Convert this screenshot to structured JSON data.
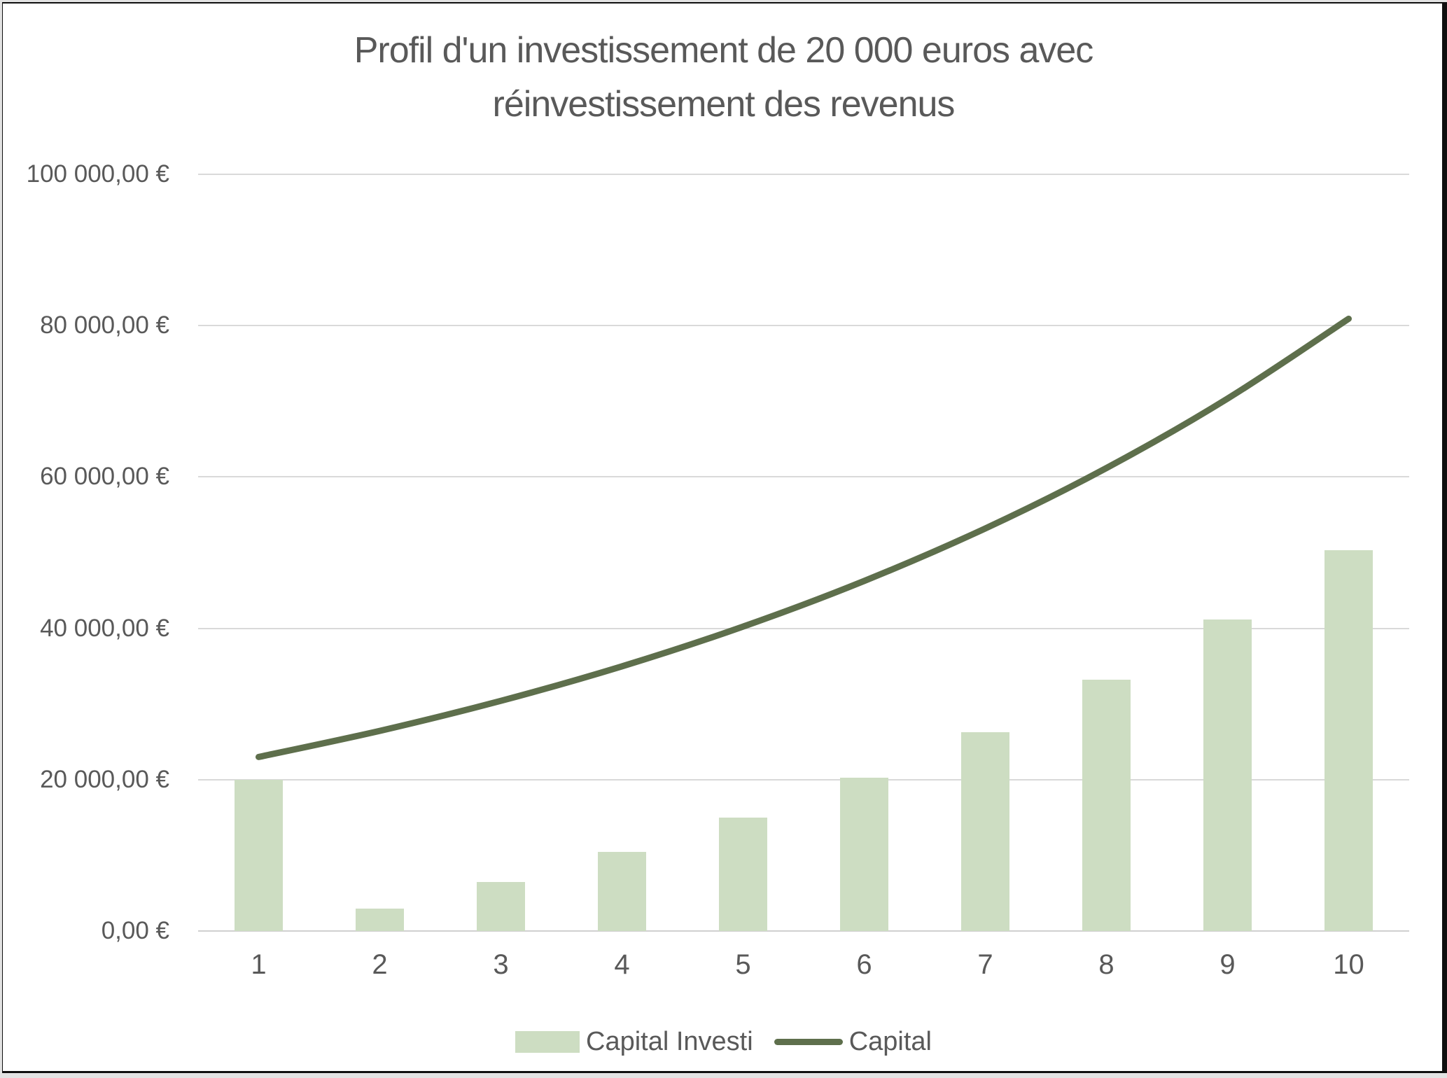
{
  "chart": {
    "title_line1": "Profil d'un investissement de 20 000 euros avec",
    "title_line2": "réinvestissement des revenus",
    "y_axis_labels": [
      "100 000,00 €",
      "80 000,00 €",
      "60 000,00 €",
      "40 000,00 €",
      "20 000,00 €",
      "0,00 €"
    ],
    "x_axis_labels": [
      "1",
      "2",
      "3",
      "4",
      "5",
      "6",
      "7",
      "8",
      "9",
      "10"
    ],
    "legend": [
      {
        "label": "Capital Investi",
        "marker": "bar-swatch"
      },
      {
        "label": "Capital",
        "marker": "line-swatch"
      }
    ],
    "colors": {
      "bar_fill": "#cdddc2",
      "line_stroke": "#5e6f4c",
      "gridline": "#d9d9d9",
      "text": "#595959",
      "frame_border": "#0f0f0f",
      "outer_background": "#e3e3e3",
      "chart_background": "#ffffff"
    }
  },
  "chart_data": {
    "type": "bar",
    "title": "Profil d'un investissement de 20 000 euros avec réinvestissement des revenus",
    "categories": [
      1,
      2,
      3,
      4,
      5,
      6,
      7,
      8,
      9,
      10
    ],
    "series": [
      {
        "name": "Capital Investi",
        "type": "bar",
        "values": [
          20000,
          3000,
          6450,
          10418,
          14980,
          20227,
          26261,
          33200,
          41180,
          50358
        ]
      },
      {
        "name": "Capital",
        "type": "line",
        "smooth": true,
        "values": [
          23000,
          26450,
          30418,
          34980,
          40227,
          46261,
          53200,
          61180,
          70358,
          80911
        ]
      }
    ],
    "xlabel": "",
    "ylabel": "",
    "ylim": [
      0,
      100000
    ],
    "y_tick_step": 20000,
    "y_tick_format": "# ##0,00 €",
    "grid": true,
    "legend_position": "bottom"
  }
}
